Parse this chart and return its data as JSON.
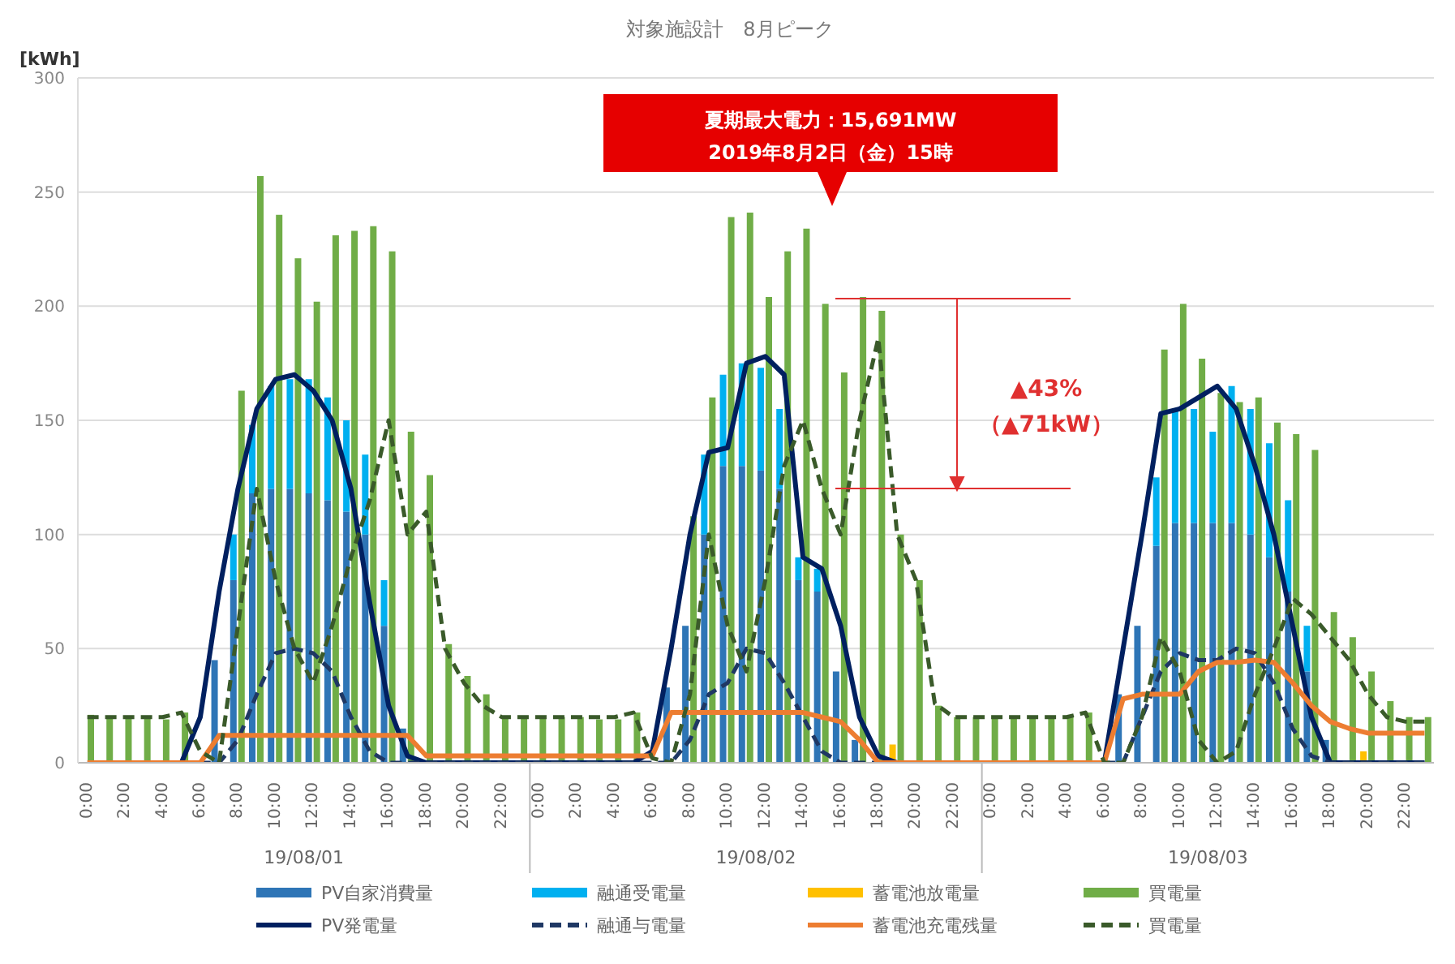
{
  "chart_data": {
    "type": "bar",
    "title": "対象施設計　8月ピーク",
    "ylabel": "[kWh]",
    "categories": [
      "0:00",
      null,
      "2:00",
      null,
      "4:00",
      null,
      "6:00",
      null,
      "8:00",
      null,
      "10:00",
      null,
      "12:00",
      null,
      "14:00",
      null,
      "16:00",
      null,
      "18:00",
      null,
      "20:00",
      null,
      "22:00",
      null,
      "0:00",
      null,
      "2:00",
      null,
      "4:00",
      null,
      "6:00",
      null,
      "8:00",
      null,
      "10:00",
      null,
      "12:00",
      null,
      "14:00",
      null,
      "16:00",
      null,
      "18:00",
      null,
      "20:00",
      null,
      "22:00",
      null,
      "0:00",
      null,
      "2:00",
      null,
      "4:00",
      null,
      "6:00",
      null,
      "8:00",
      null,
      "10:00",
      null,
      "12:00",
      null,
      "14:00",
      null,
      "16:00",
      null,
      "18:00",
      null,
      "20:00",
      null,
      "22:00",
      null
    ],
    "ylim": [
      0,
      300
    ],
    "yticks": [
      0,
      50,
      100,
      150,
      200,
      250,
      300
    ],
    "grid": "y",
    "legend": "bottom",
    "series": [
      {
        "name": "PV自家消費量",
        "color": "#2e75b6",
        "values": [
          0,
          0,
          0,
          0,
          0,
          0,
          0,
          45,
          80,
          118,
          120,
          120,
          118,
          115,
          110,
          100,
          60,
          15,
          0,
          0,
          0,
          0,
          0,
          0,
          0,
          0,
          0,
          0,
          0,
          0,
          0,
          33,
          60,
          100,
          130,
          130,
          128,
          120,
          80,
          75,
          40,
          10,
          0,
          0,
          0,
          0,
          0,
          0,
          0,
          0,
          0,
          0,
          0,
          0,
          0,
          30,
          60,
          95,
          105,
          105,
          105,
          105,
          100,
          90,
          75,
          40,
          10,
          0,
          0,
          0,
          0,
          0
        ]
      },
      {
        "name": "融通受電量",
        "color": "#00b0f0",
        "base": [
          null,
          null,
          null,
          null,
          null,
          null,
          null,
          null,
          80,
          118,
          120,
          120,
          118,
          115,
          110,
          100,
          60,
          null,
          null,
          null,
          null,
          null,
          null,
          null,
          null,
          null,
          null,
          null,
          null,
          null,
          null,
          null,
          null,
          100,
          130,
          130,
          128,
          120,
          80,
          75,
          null,
          null,
          null,
          null,
          null,
          null,
          null,
          null,
          null,
          null,
          null,
          null,
          null,
          null,
          null,
          null,
          null,
          95,
          105,
          105,
          105,
          105,
          100,
          90,
          75,
          40,
          null,
          null,
          null,
          null,
          null,
          null
        ],
        "values": [
          0,
          0,
          0,
          0,
          0,
          0,
          0,
          0,
          20,
          30,
          45,
          48,
          50,
          45,
          40,
          35,
          20,
          0,
          0,
          0,
          0,
          0,
          0,
          0,
          0,
          0,
          0,
          0,
          0,
          0,
          0,
          0,
          0,
          35,
          40,
          45,
          45,
          35,
          10,
          10,
          0,
          0,
          0,
          0,
          0,
          0,
          0,
          0,
          0,
          0,
          0,
          0,
          0,
          0,
          0,
          0,
          0,
          30,
          50,
          50,
          40,
          60,
          55,
          50,
          40,
          20,
          0,
          0,
          0,
          0,
          0,
          0
        ]
      },
      {
        "name": "蓄電池放電量",
        "color": "#ffc000",
        "base": [
          null,
          null,
          null,
          null,
          null,
          null,
          null,
          null,
          null,
          null,
          null,
          null,
          null,
          null,
          null,
          null,
          null,
          null,
          null,
          null,
          null,
          null,
          null,
          null,
          null,
          null,
          null,
          null,
          null,
          null,
          null,
          null,
          null,
          null,
          null,
          null,
          null,
          null,
          null,
          null,
          null,
          null,
          null,
          0,
          null,
          null,
          null,
          null,
          null,
          null,
          null,
          null,
          null,
          null,
          null,
          null,
          null,
          null,
          null,
          null,
          null,
          null,
          null,
          null,
          null,
          null,
          null,
          null,
          0,
          null,
          null,
          null
        ],
        "values": [
          0,
          0,
          0,
          0,
          0,
          0,
          0,
          0,
          0,
          0,
          0,
          0,
          0,
          0,
          0,
          0,
          0,
          0,
          0,
          0,
          0,
          0,
          0,
          0,
          0,
          0,
          0,
          0,
          0,
          0,
          0,
          0,
          0,
          0,
          0,
          0,
          0,
          0,
          0,
          0,
          0,
          0,
          0,
          8,
          0,
          0,
          0,
          0,
          0,
          0,
          0,
          0,
          0,
          0,
          0,
          0,
          0,
          0,
          0,
          0,
          0,
          0,
          0,
          0,
          0,
          0,
          0,
          0,
          5,
          0,
          0,
          0
        ]
      },
      {
        "name": "買電量",
        "color": "#70ad47",
        "values": [
          21,
          20,
          20,
          20,
          19,
          22,
          0,
          0,
          163,
          257,
          240,
          221,
          202,
          231,
          233,
          235,
          224,
          145,
          126,
          52,
          38,
          30,
          20,
          20,
          20,
          20,
          20,
          19,
          19,
          22,
          0,
          0,
          108,
          160,
          239,
          241,
          204,
          224,
          234,
          201,
          171,
          204,
          198,
          100,
          80,
          25,
          20,
          20,
          20,
          20,
          20,
          20,
          20,
          22,
          0,
          0,
          0,
          181,
          201,
          177,
          162,
          158,
          160,
          149,
          144,
          137,
          66,
          55,
          40,
          27,
          20,
          20
        ]
      },
      {
        "name": "PV発電量",
        "type": "line",
        "color": "#002060",
        "line_style": "solid",
        "values": [
          null,
          null,
          null,
          null,
          null,
          0,
          20,
          75,
          120,
          155,
          168,
          170,
          163,
          150,
          120,
          70,
          25,
          3,
          0,
          0,
          0,
          0,
          0,
          0,
          0,
          0,
          0,
          0,
          0,
          0,
          5,
          50,
          100,
          136,
          138,
          175,
          178,
          170,
          90,
          85,
          60,
          20,
          3,
          0,
          0,
          0,
          0,
          0,
          0,
          0,
          0,
          0,
          0,
          0,
          0,
          50,
          100,
          153,
          155,
          160,
          165,
          155,
          130,
          100,
          60,
          20,
          0,
          0,
          0,
          0,
          0,
          0
        ]
      },
      {
        "name": "融通与電量",
        "type": "line",
        "color": "#1f3864",
        "line_style": "dashed",
        "values": [
          null,
          null,
          null,
          null,
          null,
          0,
          0,
          0,
          10,
          30,
          48,
          50,
          48,
          40,
          20,
          5,
          0,
          0,
          0,
          0,
          0,
          0,
          0,
          0,
          0,
          0,
          0,
          0,
          0,
          0,
          0,
          0,
          10,
          30,
          35,
          50,
          48,
          35,
          20,
          5,
          0,
          0,
          0,
          0,
          0,
          0,
          0,
          0,
          0,
          0,
          0,
          0,
          0,
          0,
          0,
          0,
          20,
          40,
          48,
          45,
          45,
          50,
          48,
          35,
          15,
          3,
          0,
          0,
          0,
          0,
          0,
          0
        ]
      },
      {
        "name": "蓄電池充電残量",
        "type": "line",
        "color": "#ed7d31",
        "line_style": "solid",
        "values": [
          0,
          0,
          0,
          0,
          0,
          0,
          0,
          12,
          12,
          12,
          12,
          12,
          12,
          12,
          12,
          12,
          12,
          12,
          3,
          3,
          3,
          3,
          3,
          3,
          3,
          3,
          3,
          3,
          3,
          3,
          3,
          22,
          22,
          22,
          22,
          22,
          22,
          22,
          22,
          20,
          18,
          10,
          0,
          0,
          0,
          0,
          0,
          0,
          0,
          0,
          0,
          0,
          0,
          0,
          0,
          28,
          30,
          30,
          30,
          40,
          44,
          44,
          45,
          44,
          35,
          25,
          18,
          15,
          13,
          13,
          13,
          13
        ]
      },
      {
        "name": "買電量",
        "type": "line",
        "color": "#3a5a2a",
        "line_style": "dashed",
        "values": [
          20,
          20,
          20,
          20,
          20,
          22,
          5,
          0,
          60,
          120,
          80,
          50,
          35,
          60,
          90,
          115,
          150,
          100,
          110,
          50,
          35,
          25,
          20,
          20,
          20,
          20,
          20,
          20,
          20,
          22,
          2,
          0,
          30,
          100,
          60,
          40,
          80,
          130,
          150,
          120,
          100,
          150,
          186,
          100,
          80,
          26,
          20,
          20,
          20,
          20,
          20,
          20,
          20,
          22,
          0,
          0,
          20,
          55,
          40,
          10,
          0,
          5,
          30,
          50,
          72,
          65,
          55,
          45,
          30,
          20,
          18,
          18
        ]
      }
    ],
    "annotations": [
      "夏期最大電力：15,691MW",
      "2019年8月2日（金）15時",
      "▲43%",
      "（▲71kW）",
      "19/08/01",
      "19/08/02",
      "19/08/03"
    ]
  }
}
